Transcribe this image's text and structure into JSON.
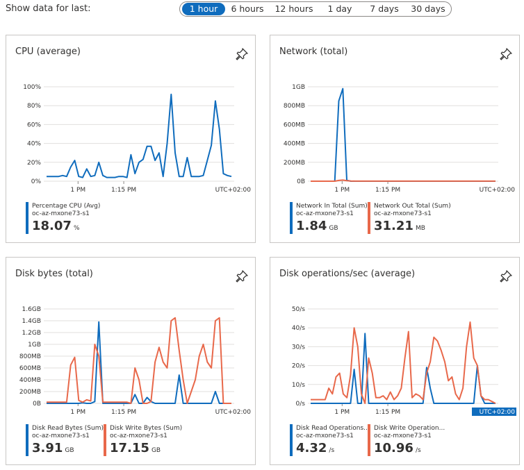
{
  "header": {
    "label": "Show data for last:",
    "ranges": [
      "1 hour",
      "6 hours",
      "12 hours",
      "1 day",
      "7 days",
      "30 days"
    ],
    "active": "1 hour"
  },
  "colors": {
    "blue": "#0f6cbd",
    "orange": "#e8684a",
    "grid": "#e1dfdd"
  },
  "cards": [
    {
      "title": "CPU (average)",
      "legend": [
        {
          "name": "Percentage CPU (Avg)",
          "resource": "oc-az-mxone73-s1",
          "value": "18.07",
          "unit": "%",
          "color": "#0f6cbd"
        }
      ]
    },
    {
      "title": "Network (total)",
      "legend": [
        {
          "name": "Network In Total (Sum)",
          "resource": "oc-az-mxone73-s1",
          "value": "1.84",
          "unit": "GB",
          "color": "#0f6cbd"
        },
        {
          "name": "Network Out Total (Sum)",
          "resource": "oc-az-mxone73-s1",
          "value": "31.21",
          "unit": "MB",
          "color": "#e8684a"
        }
      ]
    },
    {
      "title": "Disk bytes (total)",
      "legend": [
        {
          "name": "Disk Read Bytes (Sum)",
          "resource": "oc-az-mxone73-s1",
          "value": "3.91",
          "unit": "GB",
          "color": "#0f6cbd"
        },
        {
          "name": "Disk Write Bytes (Sum)",
          "resource": "oc-az-mxone73-s1",
          "value": "17.15",
          "unit": "GB",
          "color": "#e8684a"
        }
      ]
    },
    {
      "title": "Disk operations/sec (average)",
      "legend": [
        {
          "name": "Disk Read Operations...",
          "resource": "oc-az-mxone73-s1",
          "value": "4.32",
          "unit": "/s",
          "color": "#0f6cbd"
        },
        {
          "name": "Disk Write Operation...",
          "resource": "oc-az-mxone73-s1",
          "value": "10.96",
          "unit": "/s",
          "color": "#e8684a"
        }
      ]
    }
  ],
  "chart_data": [
    {
      "type": "line",
      "ylim": [
        0,
        100
      ],
      "yticks": [
        "0%",
        "20%",
        "40%",
        "60%",
        "80%",
        "100%"
      ],
      "xticks": [
        "1 PM",
        "1:15 PM"
      ],
      "timezone": "UTC+02:00",
      "series": [
        {
          "name": "Percentage CPU (Avg)",
          "color": "#0f6cbd",
          "values": [
            5,
            5,
            5,
            5,
            6,
            5,
            15,
            22,
            5,
            4,
            13,
            5,
            6,
            20,
            6,
            4,
            4,
            4,
            5,
            5,
            4,
            28,
            8,
            20,
            23,
            37,
            37,
            22,
            30,
            5,
            40,
            92,
            30,
            5,
            5,
            25,
            5,
            5,
            5,
            6,
            22,
            38,
            85,
            55,
            8,
            6,
            5
          ]
        }
      ]
    },
    {
      "type": "line",
      "ylim": [
        0,
        1000
      ],
      "yticks": [
        "0B",
        "200MB",
        "400MB",
        "600MB",
        "800MB",
        "1GB"
      ],
      "xticks": [
        "1 PM",
        "1:15 PM"
      ],
      "timezone": "UTC+02:00",
      "series": [
        {
          "name": "Network In Total (Sum)",
          "color": "#0f6cbd",
          "values": [
            0,
            0,
            0,
            0,
            0,
            0,
            0,
            850,
            980,
            10,
            0,
            0,
            0,
            0,
            0,
            0,
            0,
            0,
            0,
            0,
            0,
            0,
            0,
            0,
            0,
            0,
            0,
            0,
            0,
            0,
            0,
            0,
            0,
            0,
            0,
            0,
            0,
            0,
            0,
            0,
            0,
            0,
            0,
            0,
            0,
            0,
            0
          ]
        },
        {
          "name": "Network Out Total (Sum)",
          "color": "#e8684a",
          "values": [
            0,
            0,
            0,
            0,
            0,
            0,
            0,
            8,
            12,
            5,
            2,
            1,
            1,
            1,
            1,
            1,
            1,
            1,
            1,
            1,
            1,
            1,
            1,
            1,
            1,
            1,
            1,
            1,
            1,
            1,
            1,
            1,
            1,
            1,
            1,
            1,
            1,
            1,
            1,
            1,
            1,
            1,
            1,
            1,
            1,
            1,
            1
          ]
        }
      ]
    },
    {
      "type": "line",
      "ylim": [
        0,
        1600
      ],
      "yticks": [
        "0B",
        "200MB",
        "400MB",
        "600MB",
        "800MB",
        "1GB",
        "1.2GB",
        "1.4GB",
        "1.6GB"
      ],
      "xticks": [
        "1 PM",
        "1:15 PM"
      ],
      "timezone": "UTC+02:00",
      "series": [
        {
          "name": "Disk Read Bytes (Sum)",
          "color": "#0f6cbd",
          "values": [
            0,
            0,
            0,
            0,
            0,
            0,
            0,
            0,
            0,
            10,
            0,
            0,
            30,
            1380,
            0,
            0,
            0,
            0,
            0,
            0,
            0,
            0,
            150,
            0,
            0,
            100,
            30,
            0,
            0,
            0,
            0,
            0,
            0,
            480,
            0,
            0,
            0,
            0,
            0,
            0,
            0,
            0,
            200,
            0,
            0,
            0,
            0
          ]
        },
        {
          "name": "Disk Write Bytes (Sum)",
          "color": "#e8684a",
          "values": [
            20,
            20,
            20,
            20,
            20,
            20,
            650,
            780,
            50,
            20,
            60,
            40,
            1000,
            800,
            20,
            20,
            20,
            20,
            20,
            20,
            20,
            0,
            600,
            400,
            0,
            0,
            30,
            700,
            950,
            700,
            600,
            1400,
            1450,
            900,
            400,
            0,
            200,
            400,
            800,
            1000,
            700,
            600,
            1400,
            1450,
            0,
            0,
            0
          ]
        }
      ]
    },
    {
      "type": "line",
      "ylim": [
        0,
        50
      ],
      "yticks": [
        "0/s",
        "10/s",
        "20/s",
        "30/s",
        "40/s",
        "50/s"
      ],
      "xticks": [
        "1 PM",
        "1:15 PM"
      ],
      "timezone": "UTC+02:00",
      "series": [
        {
          "name": "Disk Read Operations...",
          "color": "#0f6cbd",
          "values": [
            0,
            0,
            0,
            0,
            0,
            0,
            0,
            0,
            0,
            0,
            0,
            0,
            18,
            0,
            0,
            37,
            0,
            0,
            0,
            0,
            0,
            0,
            0,
            0,
            0,
            0,
            0,
            0,
            0,
            0,
            0,
            0,
            19,
            8,
            0,
            0,
            0,
            0,
            0,
            0,
            0,
            0,
            0,
            0,
            0,
            0,
            20,
            4,
            0,
            0,
            0,
            0
          ]
        },
        {
          "name": "Disk Write Operation...",
          "color": "#e8684a",
          "values": [
            2,
            2,
            2,
            2,
            2,
            8,
            5,
            14,
            16,
            5,
            3,
            15,
            40,
            30,
            5,
            0,
            24,
            16,
            3,
            3,
            4,
            2,
            6,
            2,
            4,
            8,
            24,
            38,
            3,
            5,
            4,
            2,
            16,
            22,
            35,
            33,
            28,
            22,
            12,
            14,
            5,
            2,
            8,
            30,
            43,
            24,
            20,
            4,
            2,
            2,
            1,
            0
          ]
        }
      ]
    }
  ]
}
